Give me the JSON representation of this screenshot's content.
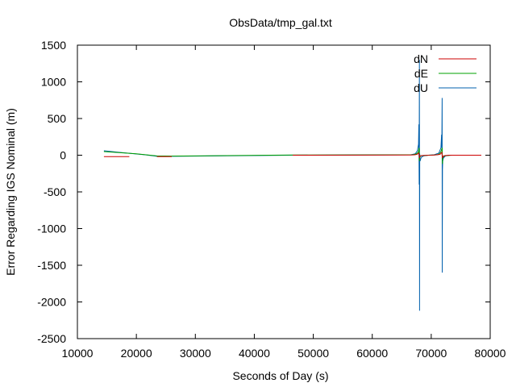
{
  "chart_data": {
    "type": "line",
    "title": "ObsData/tmp_gal.txt",
    "xlabel": "Seconds of Day (s)",
    "ylabel": "Error Regarding IGS Nominal (m)",
    "xlim": [
      10000,
      80000
    ],
    "ylim": [
      -2500,
      1500
    ],
    "xticks": [
      "10000",
      "20000",
      "30000",
      "40000",
      "50000",
      "60000",
      "70000",
      "80000"
    ],
    "yticks": [
      "1500",
      "1000",
      "500",
      "0",
      "-500",
      "-1000",
      "-1500",
      "-2000",
      "-2500"
    ],
    "legend_position": "top-right",
    "grid": false,
    "series": [
      {
        "name": "dN",
        "color": "#cc0000",
        "x": [
          14500,
          18800,
          null,
          23500,
          26000,
          null,
          46500,
          66500,
          67200,
          67600,
          67900,
          68000,
          68100,
          68300,
          68800,
          70000,
          71000,
          71500,
          71800,
          71900,
          72000,
          72300,
          73000,
          78500
        ],
        "y": [
          -20,
          -20,
          null,
          -20,
          -20,
          null,
          0,
          2,
          5,
          12,
          30,
          -30,
          -12,
          -5,
          -2,
          0,
          5,
          12,
          40,
          -40,
          -12,
          -5,
          0,
          0
        ]
      },
      {
        "name": "dE",
        "color": "#00a000",
        "x": [
          14500,
          20000,
          23500,
          26000,
          46500,
          66800,
          67400,
          67800,
          67950,
          68000,
          68050,
          68200,
          68600,
          69500,
          70500,
          71200,
          71600,
          71850,
          71900,
          71950,
          72100,
          72500,
          73500,
          78500
        ],
        "y": [
          50,
          20,
          -10,
          -12,
          2,
          5,
          15,
          40,
          100,
          -80,
          -30,
          -10,
          -5,
          0,
          2,
          10,
          40,
          100,
          -120,
          -40,
          -15,
          -5,
          0,
          0
        ]
      },
      {
        "name": "dU",
        "color": "#0060ad",
        "x": [
          14500,
          17000,
          21500,
          23500,
          26000,
          46500,
          66500,
          67300,
          67650,
          67850,
          67900,
          67950,
          68000,
          68020,
          68050,
          68100,
          68300,
          68700,
          69500,
          70500,
          71300,
          71650,
          71750,
          71800,
          71850,
          71870,
          71900,
          71950,
          72050,
          72400,
          73200,
          78500
        ],
        "y": [
          60,
          40,
          5,
          -15,
          -15,
          0,
          5,
          20,
          60,
          150,
          420,
          -400,
          1300,
          -2120,
          20,
          -80,
          -30,
          -10,
          0,
          5,
          30,
          100,
          280,
          100,
          780,
          -1600,
          -200,
          -80,
          -40,
          -10,
          0,
          0
        ]
      }
    ]
  }
}
